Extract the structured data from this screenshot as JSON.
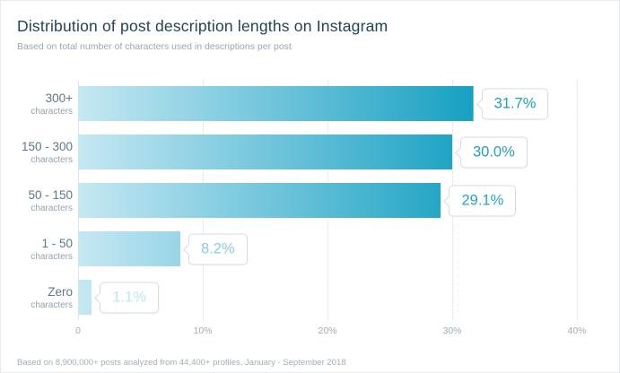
{
  "header": {
    "title": "Distribution of post description lengths on Instagram",
    "subtitle": "Based on total number of characters used in descriptions per post"
  },
  "footer": {
    "note": "Based on 8,900,000+ posts analyzed from 44,400+ profiles, January - September 2018"
  },
  "chart_data": {
    "type": "bar",
    "orientation": "horizontal",
    "title": "Distribution of post description lengths on Instagram",
    "subtitle": "Based on total number of characters used in descriptions per post",
    "categories": [
      "300+",
      "150 - 300",
      "50 - 150",
      "1 - 50",
      "Zero"
    ],
    "category_sublabel": "characters",
    "values": [
      31.7,
      30.0,
      29.1,
      8.2,
      1.1
    ],
    "value_labels": [
      "31.7%",
      "30.0%",
      "29.1%",
      "8.2%",
      "1.1%"
    ],
    "value_colors": [
      "#1b9fc0",
      "#1fa2c2",
      "#27a6c5",
      "#85cde1",
      "#bfe5f0"
    ],
    "x_ticks": [
      "0",
      "10%",
      "20%",
      "30%",
      "40%"
    ],
    "xlabel": "",
    "ylabel": "",
    "xlim": [
      0,
      40
    ],
    "grid": "vertical-dotted",
    "legend": "none",
    "colors": {
      "bar_gradient_start": "#c6e8f3",
      "bar_gradient_end": "#17a0c2",
      "title": "#21445a",
      "muted_text": "#9aa7b1",
      "gridline": "#d6dce1"
    }
  }
}
